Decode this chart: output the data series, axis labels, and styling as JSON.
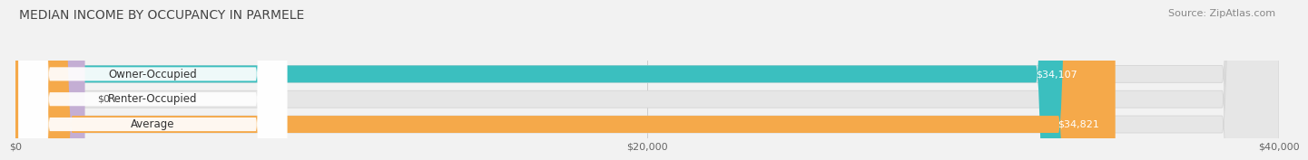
{
  "title": "MEDIAN INCOME BY OCCUPANCY IN PARMELE",
  "source": "Source: ZipAtlas.com",
  "categories": [
    "Owner-Occupied",
    "Renter-Occupied",
    "Average"
  ],
  "values": [
    34107,
    0,
    34821
  ],
  "bar_colors": [
    "#3bbfbf",
    "#c4aed4",
    "#f5a94a"
  ],
  "bar_labels": [
    "$34,107",
    "$0",
    "$34,821"
  ],
  "xlim": [
    0,
    40000
  ],
  "xticks": [
    0,
    20000,
    40000
  ],
  "xtick_labels": [
    "$0",
    "$20,000",
    "$40,000"
  ],
  "background_color": "#f2f2f2",
  "bar_bg_color": "#e6e6e6",
  "label_pill_color": "#ffffff",
  "title_fontsize": 10,
  "source_fontsize": 8,
  "bar_label_fontsize": 8,
  "cat_label_fontsize": 8.5,
  "tick_fontsize": 8
}
